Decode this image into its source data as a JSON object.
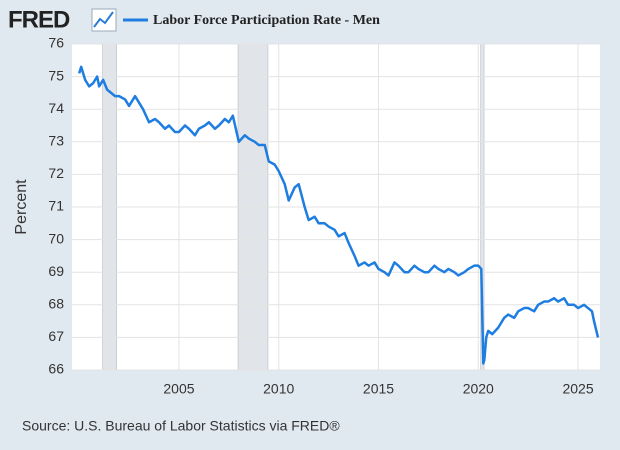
{
  "brand": "FRED",
  "source": "Source: U.S. Bureau of Labor Statistics via FRED®",
  "chart_data": {
    "type": "line",
    "y_label": "Percent",
    "x": [
      2000.0,
      2000.1,
      2000.3,
      2000.5,
      2000.7,
      2000.9,
      2001.0,
      2001.2,
      2001.4,
      2001.6,
      2001.8,
      2002.0,
      2002.3,
      2002.5,
      2002.8,
      2003.0,
      2003.2,
      2003.5,
      2003.8,
      2004.0,
      2004.3,
      2004.5,
      2004.8,
      2005.0,
      2005.3,
      2005.5,
      2005.8,
      2006.0,
      2006.3,
      2006.5,
      2006.8,
      2007.0,
      2007.3,
      2007.5,
      2007.7,
      2008.0,
      2008.3,
      2008.5,
      2008.8,
      2009.0,
      2009.3,
      2009.5,
      2009.8,
      2010.0,
      2010.3,
      2010.5,
      2010.8,
      2011.0,
      2011.3,
      2011.5,
      2011.8,
      2012.0,
      2012.3,
      2012.5,
      2012.8,
      2013.0,
      2013.3,
      2013.5,
      2013.8,
      2014.0,
      2014.3,
      2014.5,
      2014.8,
      2015.0,
      2015.3,
      2015.5,
      2015.8,
      2016.0,
      2016.3,
      2016.5,
      2016.8,
      2017.0,
      2017.3,
      2017.5,
      2017.8,
      2018.0,
      2018.3,
      2018.5,
      2018.8,
      2019.0,
      2019.3,
      2019.5,
      2019.8,
      2020.0,
      2020.15,
      2020.25,
      2020.3,
      2020.4,
      2020.5,
      2020.7,
      2021.0,
      2021.3,
      2021.5,
      2021.8,
      2022.0,
      2022.3,
      2022.5,
      2022.8,
      2023.0,
      2023.3,
      2023.5,
      2023.8,
      2024.0,
      2024.3,
      2024.5,
      2024.8,
      2025.0,
      2025.3,
      2025.5,
      2025.7,
      2025.8,
      2026.0
    ],
    "series": [
      {
        "name": "Labor Force Participation Rate - Men",
        "color": "#1e7de0",
        "values": [
          75.1,
          75.3,
          74.9,
          74.7,
          74.8,
          75.0,
          74.7,
          74.9,
          74.6,
          74.5,
          74.4,
          74.4,
          74.3,
          74.1,
          74.4,
          74.2,
          74.0,
          73.6,
          73.7,
          73.6,
          73.4,
          73.5,
          73.3,
          73.3,
          73.5,
          73.4,
          73.2,
          73.4,
          73.5,
          73.6,
          73.4,
          73.5,
          73.7,
          73.6,
          73.8,
          73.0,
          73.2,
          73.1,
          73.0,
          72.9,
          72.9,
          72.4,
          72.3,
          72.1,
          71.7,
          71.2,
          71.6,
          71.7,
          71.0,
          70.6,
          70.7,
          70.5,
          70.5,
          70.4,
          70.3,
          70.1,
          70.2,
          69.9,
          69.5,
          69.2,
          69.3,
          69.2,
          69.3,
          69.1,
          69.0,
          68.9,
          69.3,
          69.2,
          69.0,
          69.0,
          69.2,
          69.1,
          69.0,
          69.0,
          69.2,
          69.1,
          69.0,
          69.1,
          69.0,
          68.9,
          69.0,
          69.1,
          69.2,
          69.2,
          69.1,
          66.2,
          66.3,
          67.0,
          67.2,
          67.1,
          67.3,
          67.6,
          67.7,
          67.6,
          67.8,
          67.9,
          67.9,
          67.8,
          68.0,
          68.1,
          68.1,
          68.2,
          68.1,
          68.2,
          68.0,
          68.0,
          67.9,
          68.0,
          67.9,
          67.8,
          67.5,
          67.0
        ]
      }
    ],
    "xlim": [
      1999.64,
      2026.1
    ],
    "ylim": [
      66,
      76
    ],
    "xticks": [
      2005,
      2010,
      2015,
      2020,
      2025
    ],
    "yticks": [
      66,
      67,
      68,
      69,
      70,
      71,
      72,
      73,
      74,
      75,
      76
    ],
    "grid": true,
    "recessions": [
      [
        2001.17,
        2001.88
      ],
      [
        2007.96,
        2009.46
      ],
      [
        2020.12,
        2020.29
      ]
    ],
    "recession_color": "#e1e5e9"
  }
}
